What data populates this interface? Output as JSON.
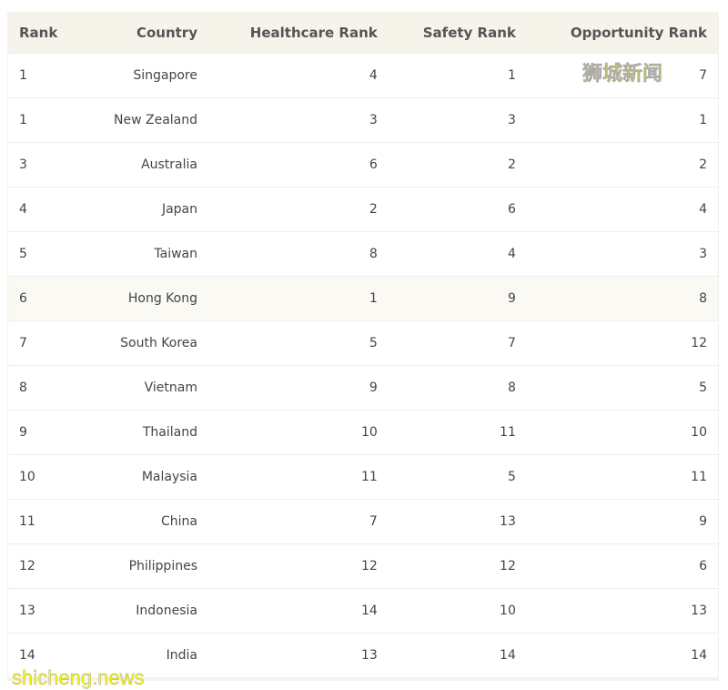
{
  "headers": [
    "Rank",
    "Country",
    "Healthcare Rank",
    "Safety Rank",
    "Opportunity Rank"
  ],
  "rows": [
    [
      "1",
      "Singapore",
      "4",
      "1",
      "7"
    ],
    [
      "1",
      "New Zealand",
      "3",
      "3",
      "1"
    ],
    [
      "3",
      "Australia",
      "6",
      "2",
      "2"
    ],
    [
      "4",
      "Japan",
      "2",
      "6",
      "4"
    ],
    [
      "5",
      "Taiwan",
      "8",
      "4",
      "3"
    ],
    [
      "6",
      "Hong Kong",
      "1",
      "9",
      "8"
    ],
    [
      "7",
      "South Korea",
      "5",
      "7",
      "12"
    ],
    [
      "8",
      "Vietnam",
      "9",
      "8",
      "5"
    ],
    [
      "9",
      "Thailand",
      "10",
      "11",
      "10"
    ],
    [
      "10",
      "Malaysia",
      "11",
      "5",
      "11"
    ],
    [
      "11",
      "China",
      "7",
      "13",
      "9"
    ],
    [
      "12",
      "Philippines",
      "12",
      "12",
      "6"
    ],
    [
      "13",
      "Indonesia",
      "14",
      "10",
      "13"
    ],
    [
      "14",
      "India",
      "13",
      "14",
      "14"
    ]
  ],
  "highlighted_row": 5,
  "watermarks": {
    "top": "狮城新闻",
    "bottom": "shicheng.news"
  }
}
